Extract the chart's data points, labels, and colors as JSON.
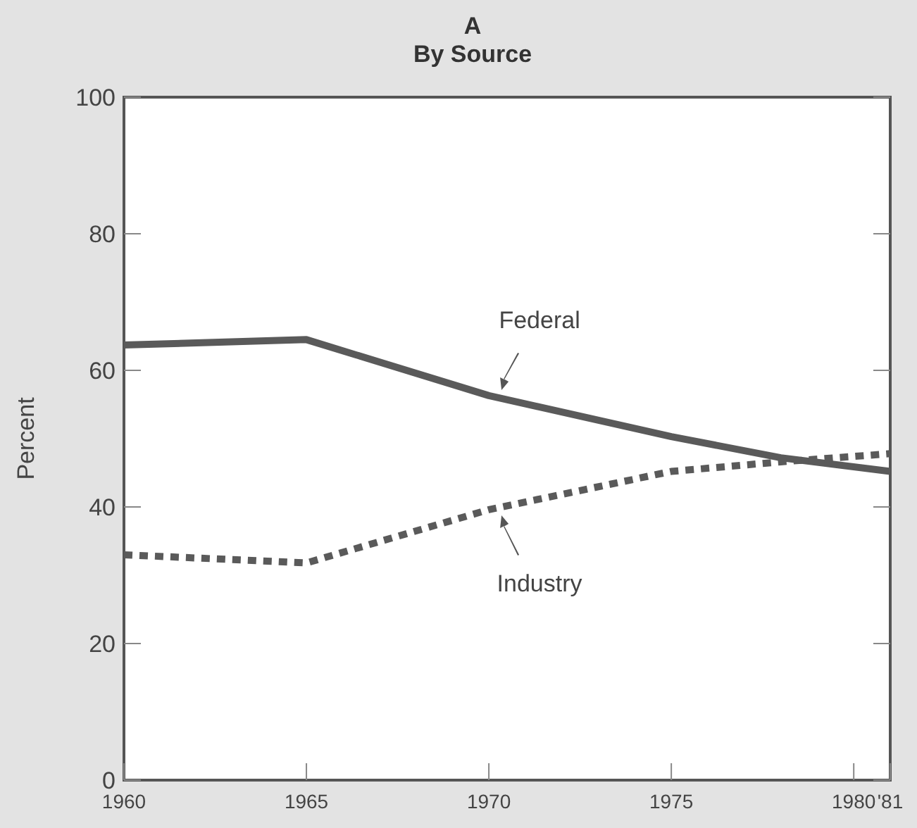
{
  "chart_data": {
    "type": "line",
    "title": "A",
    "subtitle": "By Source",
    "ylabel": "Percent",
    "x": [
      1960,
      1965,
      1970,
      1975,
      1978,
      1981
    ],
    "series": [
      {
        "name": "Federal",
        "color": "#5a5a5a",
        "line_style": "solid",
        "values": [
          63.7,
          64.5,
          56.3,
          50.3,
          47.2,
          45.2
        ]
      },
      {
        "name": "Industry",
        "color": "#5a5a5a",
        "line_style": "dotted",
        "values": [
          33,
          31.8,
          39.6,
          45.2,
          46.6,
          47.8
        ]
      }
    ],
    "xlim": [
      1960,
      1981
    ],
    "xticks": [
      1960,
      1965,
      1970,
      1975,
      1980,
      {
        "value": 1981,
        "label": "'81"
      }
    ],
    "ylim": [
      0,
      100
    ],
    "yticks": [
      0,
      20,
      40,
      60,
      80,
      100
    ],
    "grid": false,
    "marker": "none"
  }
}
